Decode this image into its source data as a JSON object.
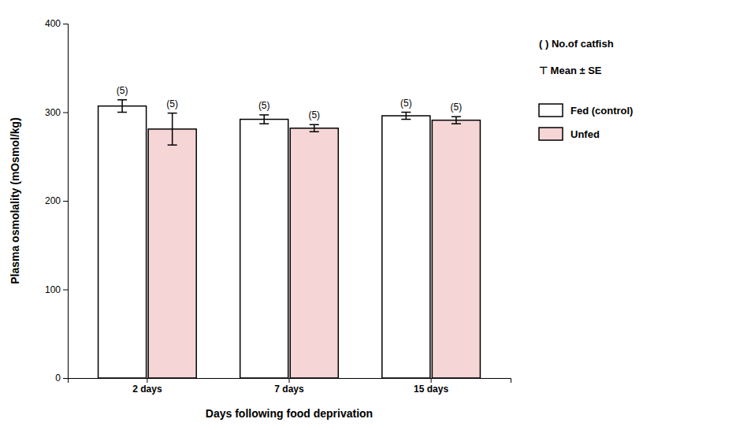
{
  "chart_data": {
    "type": "bar",
    "categories": [
      "2 days",
      "7 days",
      "15 days"
    ],
    "series": [
      {
        "name": "Fed (control)",
        "color": "#ffffff",
        "values": [
          307,
          292,
          296
        ],
        "errors": [
          7,
          5,
          4
        ],
        "count_labels": [
          "(5)",
          "(5)",
          "(5)"
        ]
      },
      {
        "name": "Unfed",
        "color": "#f5d5d5",
        "values": [
          281,
          282,
          291
        ],
        "errors": [
          18,
          4,
          4
        ],
        "count_labels": [
          "(5)",
          "(5)",
          "(5)"
        ]
      }
    ],
    "xlabel": "Days following food deprivation",
    "ylabel": "Plasma osmolality (mOsmol/kg)",
    "ylim": [
      0,
      400
    ],
    "yticks": [
      0,
      100,
      200,
      300,
      400
    ],
    "annotations": [
      "( ) No.of catfish",
      "⊤ Mean ± SE"
    ],
    "legend": "right",
    "grid": false
  }
}
